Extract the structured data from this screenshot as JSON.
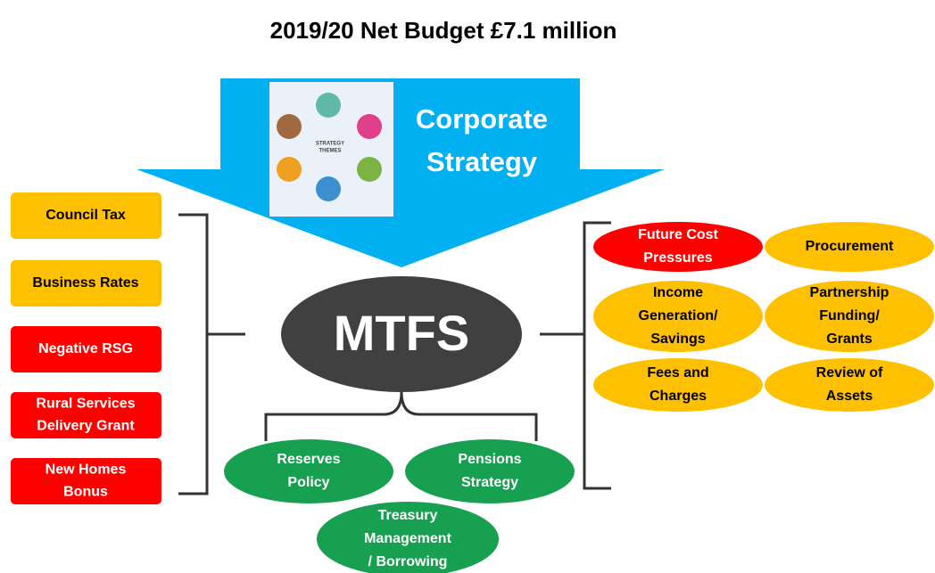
{
  "title": "2019/20 Net Budget £7.1 million",
  "strategy": {
    "lines": [
      "Corporate",
      "Strategy"
    ],
    "image_label": [
      "STRATEGY",
      "THEMES"
    ]
  },
  "center": "MTFS",
  "funding": [
    {
      "lines": [
        "Council Tax"
      ],
      "color": "#ffc000"
    },
    {
      "lines": [
        "Business Rates"
      ],
      "color": "#ffc000"
    },
    {
      "lines": [
        "Negative RSG"
      ],
      "color": "#ff0000"
    },
    {
      "lines": [
        "Rural Services",
        "Delivery Grant"
      ],
      "color": "#ff0000"
    },
    {
      "lines": [
        "New Homes",
        "Bonus"
      ],
      "color": "#ff0000"
    }
  ],
  "factors": [
    {
      "lines": [
        "Future Cost",
        "Pressures"
      ],
      "color": "#ff0000"
    },
    {
      "lines": [
        "Procurement"
      ],
      "color": "#ffc000"
    },
    {
      "lines": [
        "Income",
        "Generation/",
        "Savings"
      ],
      "color": "#ffc000"
    },
    {
      "lines": [
        "Partnership",
        "Funding/",
        "Grants"
      ],
      "color": "#ffc000"
    },
    {
      "lines": [
        "Fees and",
        "Charges"
      ],
      "color": "#ffc000"
    },
    {
      "lines": [
        "Review of",
        "Assets"
      ],
      "color": "#ffc000"
    }
  ],
  "policies": [
    {
      "lines": [
        "Reserves",
        "Policy"
      ]
    },
    {
      "lines": [
        "Pensions",
        "Strategy"
      ]
    },
    {
      "lines": [
        "Treasury",
        "Management",
        "/ Borrowing"
      ]
    }
  ]
}
